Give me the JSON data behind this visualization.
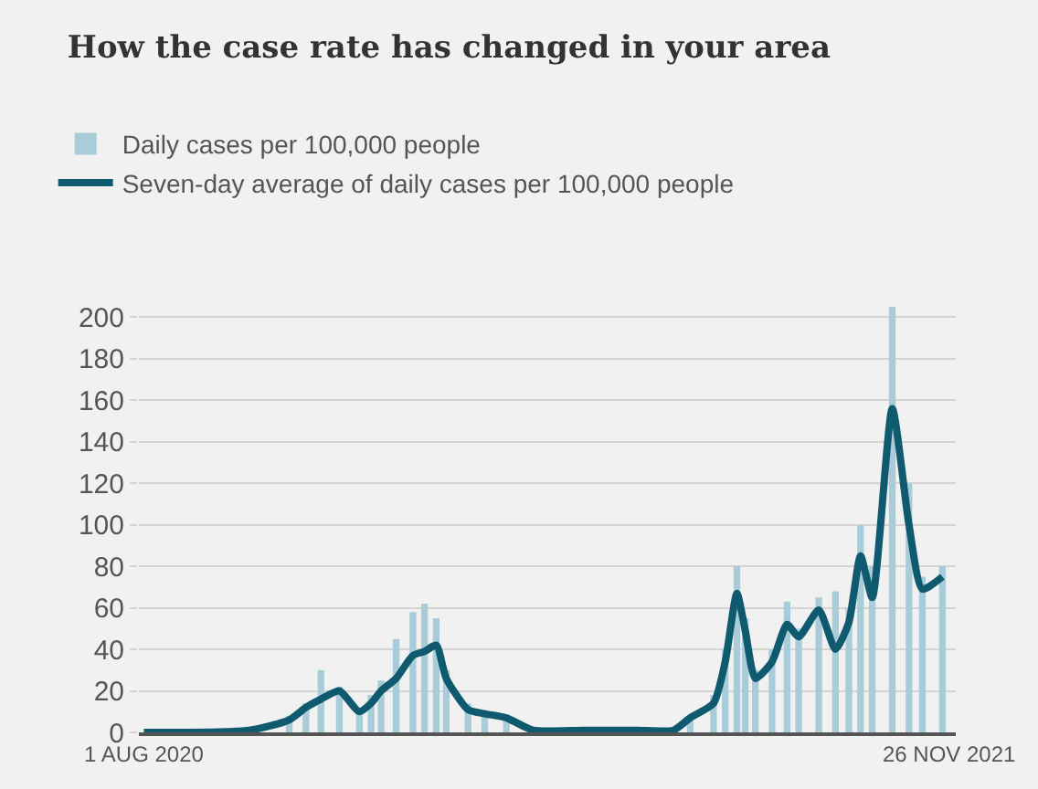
{
  "chart_data": {
    "type": "line",
    "title": "How the case rate has changed in your area",
    "series": [
      {
        "name": "Daily cases per 100,000 people",
        "type": "bar",
        "color": "#a9cdd8",
        "x": [
          "2020-08-01",
          "2020-10-03",
          "2020-10-27",
          "2020-11-06",
          "2020-11-15",
          "2020-11-26",
          "2020-12-08",
          "2020-12-15",
          "2020-12-21",
          "2020-12-30",
          "2021-01-09",
          "2021-01-16",
          "2021-01-23",
          "2021-01-29",
          "2021-02-11",
          "2021-02-21",
          "2021-03-06",
          "2021-03-22",
          "2021-04-21",
          "2021-05-23",
          "2021-06-14",
          "2021-06-24",
          "2021-07-08",
          "2021-07-15",
          "2021-07-22",
          "2021-07-27",
          "2021-08-02",
          "2021-08-12",
          "2021-08-21",
          "2021-08-28",
          "2021-09-09",
          "2021-09-19",
          "2021-09-27",
          "2021-10-04",
          "2021-10-11",
          "2021-10-23",
          "2021-11-02",
          "2021-11-10",
          "2021-11-22"
        ],
        "values": [
          0,
          null,
          8,
          14,
          30,
          22,
          12,
          18,
          25,
          45,
          58,
          62,
          55,
          30,
          14,
          10,
          8,
          null,
          1,
          1,
          null,
          8,
          18,
          40,
          80,
          55,
          30,
          40,
          63,
          50,
          65,
          68,
          60,
          100,
          80,
          205,
          120,
          75,
          80
        ]
      },
      {
        "name": "Seven-day average of daily cases per 100,000 people",
        "color": "#0f5a6e",
        "x": [
          "2020-08-01",
          "2020-10-03",
          "2020-10-27",
          "2020-11-06",
          "2020-11-15",
          "2020-11-26",
          "2020-12-08",
          "2020-12-15",
          "2020-12-21",
          "2020-12-30",
          "2021-01-09",
          "2021-01-16",
          "2021-01-23",
          "2021-01-29",
          "2021-02-11",
          "2021-02-21",
          "2021-03-06",
          "2021-03-22",
          "2021-04-21",
          "2021-05-23",
          "2021-06-14",
          "2021-06-24",
          "2021-07-08",
          "2021-07-15",
          "2021-07-22",
          "2021-07-27",
          "2021-08-02",
          "2021-08-12",
          "2021-08-21",
          "2021-08-28",
          "2021-09-09",
          "2021-09-19",
          "2021-09-27",
          "2021-10-04",
          "2021-10-11",
          "2021-10-23",
          "2021-11-02",
          "2021-11-10",
          "2021-11-22"
        ],
        "values": [
          0,
          1,
          6,
          12,
          16,
          20,
          10,
          14,
          20,
          26,
          37,
          39,
          42,
          26,
          11,
          9,
          7,
          1,
          1,
          1,
          1,
          7,
          14,
          34,
          67,
          49,
          26,
          34,
          52,
          46,
          59,
          40,
          53,
          85,
          65,
          156,
          100,
          69,
          75
        ]
      }
    ],
    "xlim": [
      "2020-07-29",
      "2021-11-30"
    ],
    "xticks": [
      {
        "value": "2020-08-01",
        "label": "1 AUG 2020"
      },
      {
        "value": "2021-11-26",
        "label": "26 NOV 2021"
      }
    ],
    "ylim": [
      0,
      205
    ],
    "yticks": [
      0,
      20,
      40,
      60,
      80,
      100,
      120,
      140,
      160,
      180,
      200
    ],
    "grid": "y",
    "legend": "top left",
    "marker": "none",
    "line_style": "solid"
  }
}
